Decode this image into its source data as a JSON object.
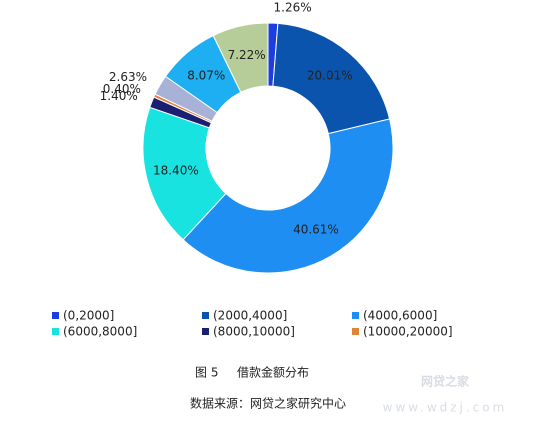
{
  "chart_data": {
    "type": "pie",
    "categories": [
      "(0,2000]",
      "(2000,4000]",
      "(4000,6000]",
      "(6000,8000]",
      "(8000,10000]",
      "(10000,20000]",
      null,
      null,
      null
    ],
    "values": [
      1.26,
      20.01,
      40.61,
      18.4,
      1.4,
      0.4,
      2.63,
      8.07,
      7.22
    ],
    "value_labels": [
      "1.26%",
      "20.01%",
      "40.61%",
      "18.40%",
      "1.40%",
      "0.40%",
      "2.63%",
      "8.07%",
      "7.22%"
    ],
    "colors": [
      "#1c3ee0",
      "#0b54ad",
      "#1f8ef2",
      "#18e3e0",
      "#1b1f72",
      "#e0843a",
      "#a8b2d6",
      "#1eaff2",
      "#b6cd9a"
    ],
    "figure_number": "图 5",
    "caption": "借款金额分布",
    "source": "数据来源：网贷之家研究中心",
    "watermark": "网贷之家",
    "watermark_url": "www.wdzj.com"
  }
}
